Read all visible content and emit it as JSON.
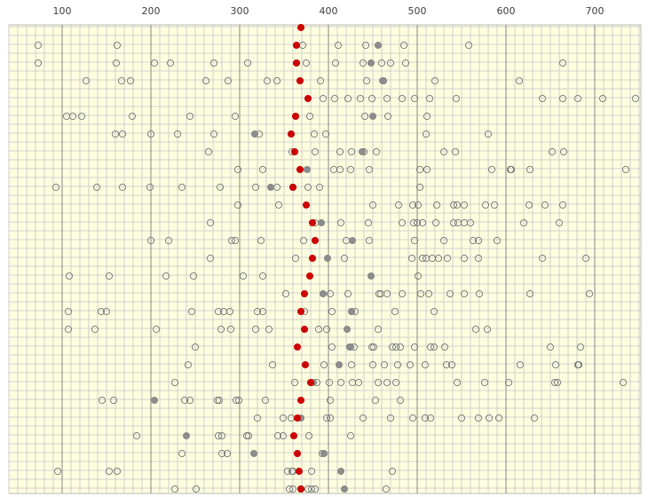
{
  "chart_data": {
    "type": "strip",
    "categories": [
      null,
      null,
      null,
      null,
      null,
      null,
      null,
      null,
      null,
      null,
      null,
      null,
      null,
      null,
      null,
      null,
      null,
      null,
      null,
      null,
      null,
      null,
      null,
      null,
      null,
      null,
      null
    ],
    "xlim": [
      40,
      752
    ],
    "xticks": [
      100,
      200,
      300,
      400,
      500,
      600,
      700
    ],
    "x_minor_step": 10,
    "grid": true,
    "background": "#ffffdf",
    "series": [
      {
        "color": "#777777",
        "filled": false,
        "values": [
          [],
          [
            73,
            162,
            371,
            411,
            442,
            485,
            558
          ],
          [
            73,
            161,
            204,
            222,
            271,
            309,
            375,
            408,
            439,
            460,
            470,
            487,
            664
          ],
          [
            127,
            167,
            177,
            262,
            287,
            331,
            342,
            391,
            443,
            462,
            520,
            615
          ],
          [
            394,
            407,
            422,
            436,
            449,
            466,
            483,
            497,
            514,
            544,
            641,
            664,
            681,
            709,
            746
          ],
          [
            105,
            112,
            122,
            179,
            244,
            295,
            379,
            441,
            467,
            511
          ],
          [
            160,
            168,
            200,
            230,
            271,
            322,
            384,
            397,
            510,
            580
          ],
          [
            265,
            359,
            385,
            413,
            426,
            440,
            454,
            530,
            543,
            652,
            665
          ],
          [
            298,
            326,
            406,
            413,
            425,
            446,
            503,
            511,
            584,
            605,
            606,
            627,
            735
          ],
          [
            93,
            139,
            168,
            199,
            235,
            278,
            318,
            342,
            360,
            377,
            390,
            503
          ],
          [
            298,
            344,
            450,
            479,
            495,
            501,
            522,
            541,
            545,
            553,
            577,
            587,
            626,
            644,
            664
          ],
          [
            267,
            385,
            414,
            445,
            483,
            496,
            500,
            506,
            521,
            541,
            546,
            553,
            560,
            620,
            660
          ],
          [
            200,
            220,
            291,
            295,
            324,
            372,
            420,
            446,
            497,
            530,
            563,
            569,
            590
          ],
          [
            267,
            363,
            418,
            494,
            506,
            510,
            517,
            524,
            534,
            553,
            569,
            641,
            690
          ],
          [
            108,
            153,
            217,
            248,
            304,
            326,
            501
          ],
          [
            352,
            402,
            422,
            457,
            459,
            466,
            483,
            504,
            513,
            537,
            553,
            570,
            627,
            694
          ],
          [
            107,
            144,
            150,
            246,
            276,
            282,
            289,
            320,
            326,
            373,
            404,
            426,
            430,
            475,
            519
          ],
          [
            107,
            137,
            206,
            279,
            290,
            318,
            333,
            389,
            398,
            456,
            566,
            579
          ],
          [
            250,
            404,
            424,
            429,
            449,
            451,
            472,
            476,
            481,
            497,
            515,
            519,
            531,
            650,
            684
          ],
          [
            242,
            337,
            395,
            426,
            450,
            463,
            478,
            492,
            509,
            533,
            539,
            616,
            656,
            681,
            682
          ],
          [
            227,
            362,
            387,
            401,
            414,
            427,
            434,
            456,
            466,
            476,
            545,
            576,
            603,
            655,
            658,
            732
          ],
          [
            145,
            158,
            238,
            244,
            275,
            277,
            296,
            299,
            329,
            402,
            453,
            481
          ],
          [
            320,
            349,
            358,
            398,
            402,
            439,
            470,
            495,
            509,
            515,
            550,
            569,
            581,
            592,
            632
          ],
          [
            184,
            276,
            280,
            308,
            310,
            343,
            349,
            378,
            425
          ],
          [
            235,
            280,
            286,
            393
          ],
          [
            95,
            153,
            162,
            354,
            359,
            360,
            381,
            472
          ],
          [
            227,
            251,
            356,
            360,
            369,
            377,
            381,
            385,
            465
          ]
        ]
      },
      {
        "color": "#8c8c8c",
        "filled": true,
        "values": [
          [],
          [
            456
          ],
          [
            448
          ],
          [
            461
          ],
          [],
          [
            450
          ],
          [
            317
          ],
          [
            438
          ],
          [
            376
          ],
          [
            335
          ],
          [],
          [
            392
          ],
          [
            427
          ],
          [
            399
          ],
          [
            448
          ],
          [
            394
          ],
          [
            426
          ],
          [
            421
          ],
          [
            425
          ],
          [
            412
          ],
          [
            383
          ],
          [
            204
          ],
          [
            369
          ],
          [
            240
          ],
          [
            316,
            395
          ],
          [
            414
          ],
          [
            418
          ]
        ]
      },
      {
        "color": "#cc0000",
        "filled": true,
        "values": [
          [
            369
          ],
          [
            364
          ],
          [
            364
          ],
          [
            368
          ],
          [
            377
          ],
          [
            363
          ],
          [
            358
          ],
          [
            362
          ],
          [
            368
          ],
          [
            360
          ],
          [
            375
          ],
          [
            382
          ],
          [
            385
          ],
          [
            382
          ],
          [
            379
          ],
          [
            373
          ],
          [
            369
          ],
          [
            373
          ],
          [
            365
          ],
          [
            374
          ],
          [
            380
          ],
          [
            369
          ],
          [
            365
          ],
          [
            361
          ],
          [
            365
          ],
          [
            367
          ],
          [
            369
          ]
        ]
      }
    ]
  }
}
